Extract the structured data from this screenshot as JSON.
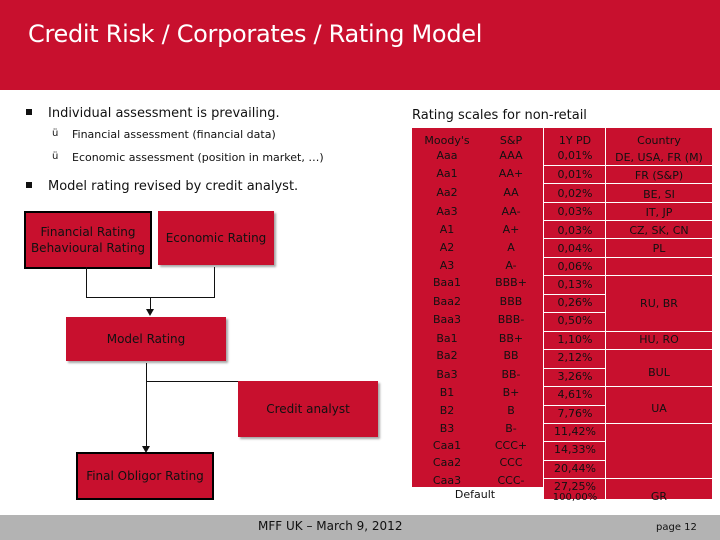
{
  "header": {
    "title": "Credit Risk / Corporates / Rating Model"
  },
  "bullets": [
    {
      "text": "Individual assessment is prevailing.",
      "subitems": [
        "Financial assessment (financial data)",
        "Economic assessment (position in market, …)"
      ]
    },
    {
      "text": "Model rating revised by credit analyst.",
      "subitems": []
    }
  ],
  "check_glyph": "ü",
  "flow": {
    "financial_line1": "Financial Rating",
    "financial_line2": "Behavioural Rating",
    "economic": "Economic Rating",
    "model": "Model Rating",
    "analyst": "Credit analyst",
    "final": "Final Obligor Rating"
  },
  "table": {
    "title": "Rating scales for non-retail",
    "headers": {
      "moodys": "Moody's",
      "sp": "S&P",
      "pd": "1Y PD",
      "country": "Country"
    },
    "moodys": [
      "Aaa",
      "Aa1",
      "Aa2",
      "Aa3",
      "A1",
      "A2",
      "A3",
      "Baa1",
      "Baa2",
      "Baa3",
      "Ba1",
      "Ba2",
      "Ba3",
      "B1",
      "B2",
      "B3",
      "Caa1",
      "Caa2",
      "Caa3"
    ],
    "sp": [
      "AAA",
      "AA+",
      "AA",
      "AA-",
      "A+",
      "A",
      "A-",
      "BBB+",
      "BBB",
      "BBB-",
      "BB+",
      "BB",
      "BB-",
      "B+",
      "B",
      "B-",
      "CCC+",
      "CCC",
      "CCC-"
    ],
    "default_label": "Default",
    "pd": [
      "0,01%",
      "0,01%",
      "0,02%",
      "0,03%",
      "0,03%",
      "0,04%",
      "0,06%",
      "0,13%",
      "0,26%",
      "0,50%",
      "1,10%",
      "2,12%",
      "3,26%",
      "4,61%",
      "7,76%",
      "11,42%",
      "14,33%",
      "20,44%",
      "27,25%",
      "100,00%"
    ],
    "country": [
      "DE, USA, FR (M)",
      "FR (S&P)",
      "BE, SI",
      "IT, JP",
      "CZ, SK, CN",
      "PL",
      "RU, BR",
      "HU, RO",
      "BUL",
      "UA",
      "GR"
    ]
  },
  "footer": {
    "center": "MFF UK – March 9, 2012",
    "page": "page 12"
  },
  "colors": {
    "accent": "#c8102e",
    "footer_bar": "#b3b3b3"
  }
}
